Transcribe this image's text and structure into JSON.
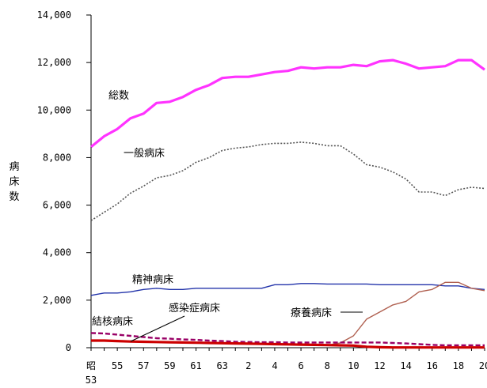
{
  "chart_data": {
    "type": "line",
    "title": "",
    "xlabel": "",
    "ylabel": "病床数",
    "ylim": [
      0,
      14000
    ],
    "yticks": [
      0,
      2000,
      4000,
      6000,
      8000,
      10000,
      12000,
      14000
    ],
    "ytick_labels": [
      "0",
      "2,000",
      "4,000",
      "6,000",
      "8,000",
      "10,000",
      "12,000",
      "14,000"
    ],
    "x": [
      53,
      54,
      55,
      56,
      57,
      58,
      59,
      60,
      61,
      62,
      63,
      64,
      65,
      66,
      67,
      68,
      69,
      70,
      71,
      72,
      73,
      74,
      75,
      76,
      77,
      78,
      79,
      80,
      81,
      82,
      83
    ],
    "xtick_positions": [
      53,
      55,
      57,
      59,
      61,
      63,
      65,
      67,
      69,
      71,
      73,
      75,
      77,
      79,
      81,
      83
    ],
    "xtick_labels": [
      "昭",
      "55",
      "57",
      "59",
      "61",
      "63",
      "2",
      "4",
      "6",
      "8",
      "10",
      "12",
      "14",
      "16",
      "18",
      "20"
    ],
    "xtick_sublabel": "53",
    "series": [
      {
        "name": "総数",
        "color": "#ff33ff",
        "style": "solid-thick",
        "values": [
          8450,
          8900,
          9200,
          9650,
          9850,
          10300,
          10350,
          10550,
          10850,
          11050,
          11350,
          11400,
          11400,
          11500,
          11600,
          11650,
          11800,
          11750,
          11800,
          11800,
          11900,
          11850,
          12050,
          12100,
          11950,
          11750,
          11800,
          11850,
          12100,
          12100,
          11700
        ]
      },
      {
        "name": "一般病床",
        "color": "#555555",
        "style": "dotted",
        "values": [
          5350,
          5700,
          6050,
          6500,
          6800,
          7150,
          7250,
          7450,
          7800,
          8000,
          8300,
          8400,
          8450,
          8550,
          8600,
          8600,
          8650,
          8600,
          8500,
          8500,
          8150,
          7700,
          7600,
          7400,
          7100,
          6550,
          6550,
          6400,
          6650,
          6750,
          6700
        ]
      },
      {
        "name": "精神病床",
        "color": "#2233aa",
        "style": "solid",
        "values": [
          2200,
          2300,
          2300,
          2350,
          2450,
          2500,
          2450,
          2450,
          2500,
          2500,
          2500,
          2500,
          2500,
          2500,
          2650,
          2650,
          2700,
          2700,
          2680,
          2680,
          2680,
          2680,
          2650,
          2650,
          2650,
          2650,
          2650,
          2600,
          2600,
          2500,
          2450
        ]
      },
      {
        "name": "療養病床",
        "color": "#b06050",
        "style": "solid",
        "values": [
          null,
          null,
          null,
          null,
          null,
          null,
          null,
          null,
          null,
          null,
          null,
          null,
          null,
          null,
          null,
          null,
          null,
          null,
          100,
          200,
          500,
          1200,
          1500,
          1800,
          1950,
          2350,
          2450,
          2750,
          2750,
          2500,
          2400
        ]
      },
      {
        "name": "結核病床",
        "color": "#990066",
        "style": "dashed",
        "values": [
          620,
          600,
          550,
          500,
          450,
          400,
          380,
          350,
          330,
          300,
          280,
          250,
          240,
          230,
          230,
          220,
          220,
          220,
          220,
          220,
          220,
          220,
          220,
          200,
          180,
          150,
          120,
          100,
          100,
          100,
          100
        ]
      },
      {
        "name": "感染症病床",
        "color": "#cc0000",
        "style": "solid-thick",
        "values": [
          300,
          300,
          280,
          260,
          250,
          240,
          230,
          220,
          210,
          200,
          190,
          180,
          170,
          160,
          150,
          140,
          130,
          120,
          110,
          100,
          90,
          40,
          20,
          10,
          10,
          10,
          10,
          10,
          10,
          10,
          10
        ]
      }
    ]
  }
}
